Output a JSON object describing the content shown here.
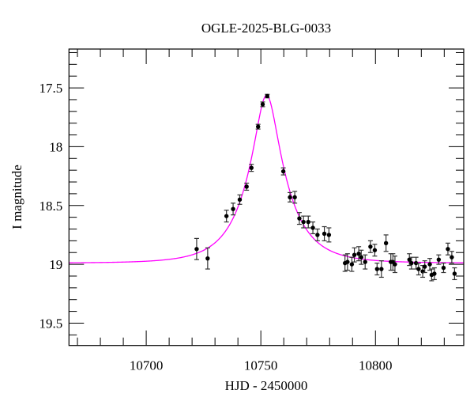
{
  "chart_data": {
    "type": "scatter",
    "title": "OGLE-2025-BLG-0033",
    "xlabel": "HJD - 2450000",
    "ylabel": "I magnitude",
    "xlim": [
      10666.3,
      10838.5
    ],
    "ylim": [
      19.69,
      17.17
    ],
    "y_inverted": true,
    "x_ticks": [
      10700,
      10750,
      10800
    ],
    "x_tick_labels": [
      "10700",
      "10750",
      "10800"
    ],
    "x_minor_step": 10,
    "y_ticks": [
      17.5,
      18,
      18.5,
      19,
      19.5
    ],
    "y_tick_labels": [
      "17.5",
      "18",
      "18.5",
      "19",
      "19.5"
    ],
    "y_minor_step": 0.1,
    "grid": false,
    "colors": {
      "points": "#000000",
      "model": "#ff00ff"
    },
    "series": [
      {
        "type": "scatter-errorbar",
        "x": [
          10722.0,
          10726.8,
          10735.0,
          10737.9,
          10740.8,
          10743.8,
          10745.9,
          10748.8,
          10750.8,
          10752.8,
          10759.8,
          10762.7,
          10764.8,
          10766.8,
          10768.6,
          10770.7,
          10772.7,
          10774.7,
          10777.7,
          10779.7,
          10786.7,
          10787.8,
          10789.7,
          10790.8,
          10792.7,
          10793.8,
          10795.5,
          10797.8,
          10799.7,
          10800.7,
          10802.6,
          10804.6,
          10806.7,
          10807.6,
          10808.5,
          10814.8,
          10815.7,
          10817.7,
          10818.8,
          10820.6,
          10821.5,
          10823.7,
          10824.5,
          10825.7,
          10827.6,
          10829.7,
          10831.6,
          10833.3,
          10834.5
        ],
        "y": [
          18.87,
          18.95,
          18.59,
          18.53,
          18.45,
          18.34,
          18.18,
          17.83,
          17.64,
          17.57,
          18.21,
          18.43,
          18.43,
          18.61,
          18.64,
          18.64,
          18.69,
          18.75,
          18.74,
          18.75,
          18.99,
          18.98,
          19.0,
          18.92,
          18.91,
          18.94,
          18.98,
          18.85,
          18.88,
          19.04,
          19.04,
          18.82,
          18.98,
          18.98,
          19.0,
          18.96,
          18.99,
          18.99,
          19.04,
          19.06,
          19.02,
          19.0,
          19.09,
          19.08,
          18.96,
          19.03,
          18.87,
          18.94,
          19.08
        ],
        "err": [
          0.09,
          0.09,
          0.05,
          0.05,
          0.04,
          0.03,
          0.03,
          0.02,
          0.02,
          0.015,
          0.03,
          0.04,
          0.05,
          0.05,
          0.05,
          0.05,
          0.05,
          0.05,
          0.06,
          0.06,
          0.07,
          0.07,
          0.06,
          0.06,
          0.06,
          0.06,
          0.06,
          0.05,
          0.05,
          0.05,
          0.07,
          0.07,
          0.07,
          0.07,
          0.07,
          0.05,
          0.05,
          0.05,
          0.05,
          0.05,
          0.05,
          0.05,
          0.05,
          0.05,
          0.04,
          0.04,
          0.05,
          0.05,
          0.05
        ]
      },
      {
        "type": "model-line",
        "model": {
          "t0": 10752.5,
          "u0": 0.276,
          "tE": 17.0,
          "baseline": 18.99
        }
      }
    ]
  }
}
